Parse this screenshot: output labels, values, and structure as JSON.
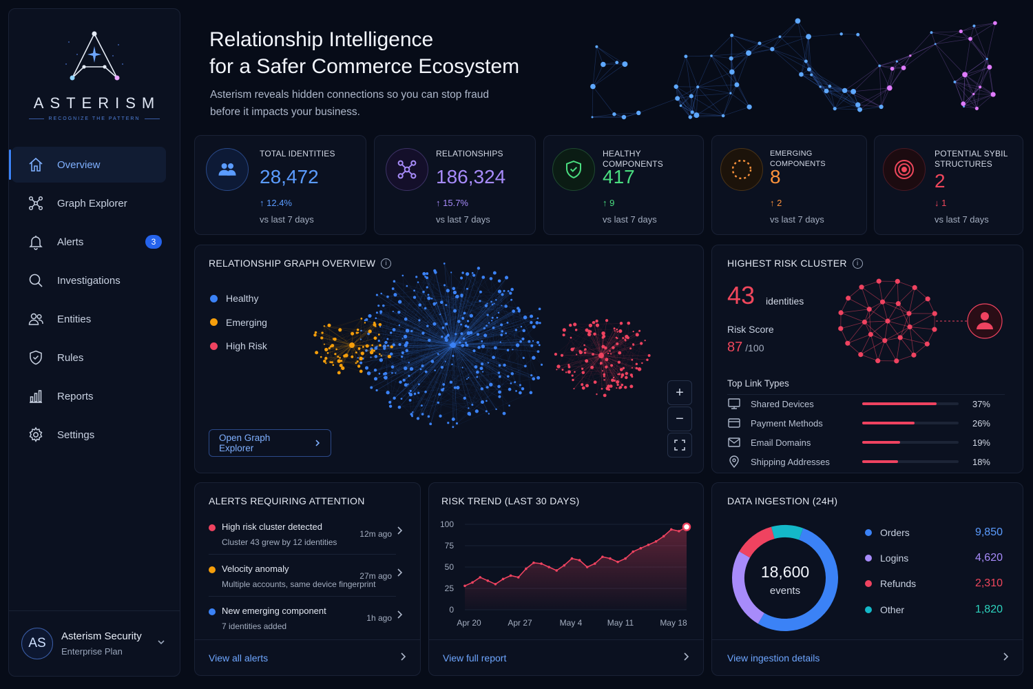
{
  "brand": {
    "name": "ASTERISM",
    "tagline": "RECOGNIZE THE PATTERN"
  },
  "nav": [
    {
      "label": "Overview",
      "icon": "home-icon",
      "active": true
    },
    {
      "label": "Graph Explorer",
      "icon": "graph-icon"
    },
    {
      "label": "Alerts",
      "icon": "bell-icon",
      "badge": "3"
    },
    {
      "label": "Investigations",
      "icon": "search-icon"
    },
    {
      "label": "Entities",
      "icon": "users-icon"
    },
    {
      "label": "Rules",
      "icon": "shield-icon"
    },
    {
      "label": "Reports",
      "icon": "bar-chart-icon"
    },
    {
      "label": "Settings",
      "icon": "gear-icon"
    }
  ],
  "user": {
    "initials": "AS",
    "name": "Asterism Security",
    "plan": "Enterprise Plan"
  },
  "hero": {
    "title_line1": "Relationship Intelligence",
    "title_line2": "for a Safer Commerce Ecosystem",
    "subtitle_line1": "Asterism reveals hidden connections so you can stop fraud",
    "subtitle_line2": "before it impacts your business."
  },
  "kpis": [
    {
      "label": "TOTAL IDENTITIES",
      "value": "28,472",
      "delta": "12.4%",
      "direction": "up",
      "vs": "vs last 7 days",
      "color": "#5b9cff",
      "icon": "users-icon"
    },
    {
      "label": "RELATIONSHIPS",
      "value": "186,324",
      "delta": "15.7%",
      "direction": "up",
      "vs": "vs last 7 days",
      "color": "#a78bfa",
      "icon": "network-icon"
    },
    {
      "label": "HEALTHY COMPONENTS",
      "value": "417",
      "delta": "9",
      "direction": "up",
      "vs": "vs last 7 days",
      "color": "#4ade80",
      "icon": "shield-check-icon"
    },
    {
      "label": "EMERGING COMPONENTS",
      "value": "8",
      "delta": "2",
      "direction": "up",
      "vs": "vs last 7 days",
      "color": "#fb923c",
      "icon": "dashed-circle-icon"
    },
    {
      "label": "POTENTIAL SYBIL STRUCTURES",
      "value": "2",
      "delta": "1",
      "direction": "down",
      "vs": "vs last 7 days",
      "color": "#f0475c",
      "icon": "target-icon"
    }
  ],
  "graph_overview": {
    "title": "RELATIONSHIP GRAPH OVERVIEW",
    "legend": [
      {
        "label": "Healthy",
        "color": "#3b82f6"
      },
      {
        "label": "Emerging",
        "color": "#f59e0b"
      },
      {
        "label": "High Risk",
        "color": "#ef4360"
      }
    ],
    "button": "Open Graph Explorer",
    "zoom_in": "+",
    "zoom_out": "−"
  },
  "risk_cluster": {
    "title": "HIGHEST RISK CLUSTER",
    "count": "43",
    "count_label": "identities",
    "score_label": "Risk Score",
    "score": "87",
    "score_max": "/100",
    "top_links_title": "Top Link Types",
    "links": [
      {
        "name": "Shared Devices",
        "pct": "37%",
        "value": 0.37,
        "icon": "monitor-icon"
      },
      {
        "name": "Payment Methods",
        "pct": "26%",
        "value": 0.26,
        "icon": "credit-card-icon"
      },
      {
        "name": "Email Domains",
        "pct": "19%",
        "value": 0.19,
        "icon": "mail-icon"
      },
      {
        "name": "Shipping Addresses",
        "pct": "18%",
        "value": 0.18,
        "icon": "location-pin-icon"
      }
    ]
  },
  "alerts": {
    "title": "ALERTS REQUIRING ATTENTION",
    "items": [
      {
        "title": "High risk cluster detected",
        "desc": "Cluster 43 grew by 12 identities",
        "time": "12m ago",
        "color": "#ef4360"
      },
      {
        "title": "Velocity anomaly",
        "desc": "Multiple accounts, same device fingerprint",
        "time": "27m ago",
        "color": "#f59e0b"
      },
      {
        "title": "New emerging component",
        "desc": "7 identities added",
        "time": "1h ago",
        "color": "#3b82f6"
      }
    ],
    "footer": "View all alerts"
  },
  "risk_trend": {
    "title": "RISK TREND (LAST 30 DAYS)",
    "footer": "View full report"
  },
  "chart_data": {
    "type": "area",
    "yticks": [
      "100",
      "75",
      "50",
      "25",
      "0"
    ],
    "xticks": [
      "Apr 20",
      "Apr 27",
      "May 4",
      "May 11",
      "May 18"
    ],
    "ylim": [
      0,
      100
    ],
    "values": [
      28,
      32,
      38,
      34,
      30,
      36,
      40,
      38,
      48,
      55,
      54,
      50,
      46,
      52,
      60,
      58,
      50,
      54,
      62,
      60,
      56,
      60,
      68,
      72,
      76,
      80,
      86,
      94,
      92,
      97
    ],
    "color": "#ef4360"
  },
  "ingestion": {
    "title": "DATA INGESTION (24H)",
    "total": "18,600",
    "total_label": "events",
    "items": [
      {
        "name": "Orders",
        "value": "9,850",
        "n": 9850,
        "color": "#3b82f6",
        "value_color": "#5b9cff"
      },
      {
        "name": "Logins",
        "value": "4,620",
        "n": 4620,
        "color": "#a78bfa",
        "value_color": "#a78bfa"
      },
      {
        "name": "Refunds",
        "value": "2,310",
        "n": 2310,
        "color": "#ef4360",
        "value_color": "#f0475c"
      },
      {
        "name": "Other",
        "value": "1,820",
        "n": 1820,
        "color": "#14b8c8",
        "value_color": "#2dd4bf"
      }
    ],
    "footer": "View ingestion details"
  }
}
